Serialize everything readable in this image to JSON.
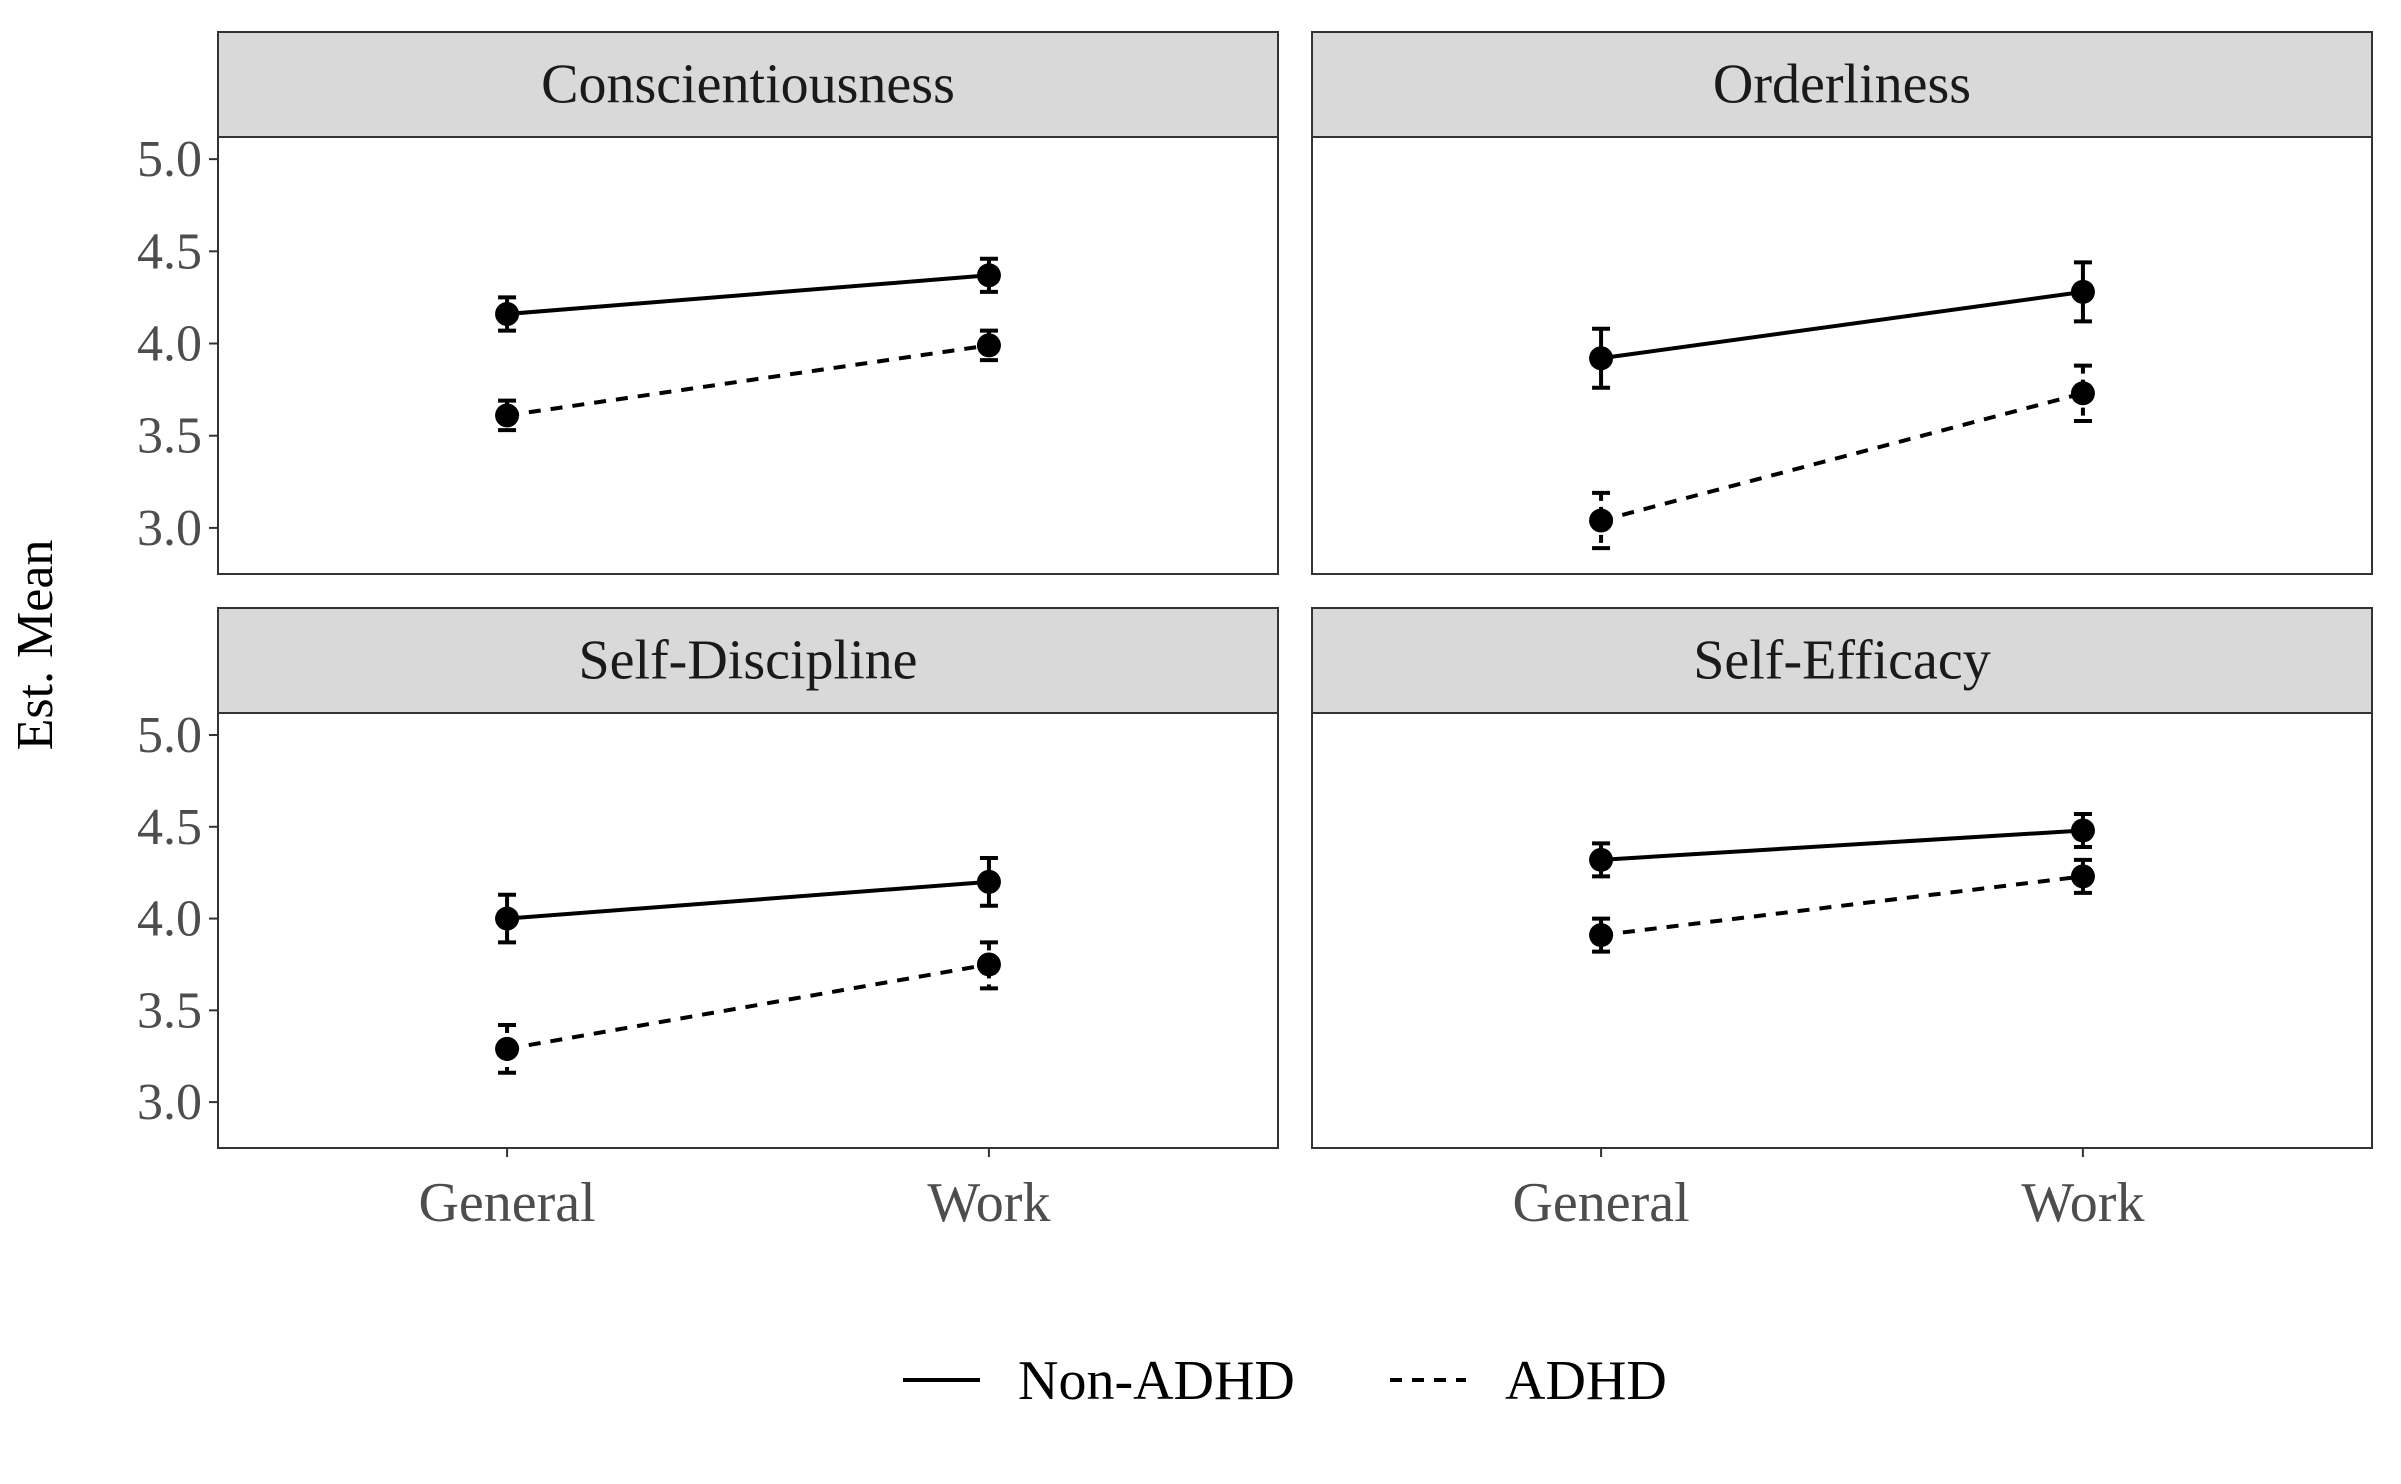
{
  "chart_data": {
    "type": "line",
    "facets": [
      {
        "title": "Conscientiousness",
        "series": [
          {
            "name": "Non-ADHD",
            "values": [
              4.16,
              4.37
            ],
            "ci_low": [
              4.07,
              4.28
            ],
            "ci_high": [
              4.25,
              4.46
            ]
          },
          {
            "name": "ADHD",
            "values": [
              3.61,
              3.99
            ],
            "ci_low": [
              3.53,
              3.91
            ],
            "ci_high": [
              3.69,
              4.07
            ]
          }
        ]
      },
      {
        "title": "Orderliness",
        "series": [
          {
            "name": "Non-ADHD",
            "values": [
              3.92,
              4.28
            ],
            "ci_low": [
              3.76,
              4.12
            ],
            "ci_high": [
              4.08,
              4.44
            ]
          },
          {
            "name": "ADHD",
            "values": [
              3.04,
              3.73
            ],
            "ci_low": [
              2.89,
              3.58
            ],
            "ci_high": [
              3.19,
              3.88
            ]
          }
        ]
      },
      {
        "title": "Self-Discipline",
        "series": [
          {
            "name": "Non-ADHD",
            "values": [
              4.0,
              4.2
            ],
            "ci_low": [
              3.87,
              4.07
            ],
            "ci_high": [
              4.13,
              4.33
            ]
          },
          {
            "name": "ADHD",
            "values": [
              3.29,
              3.75
            ],
            "ci_low": [
              3.16,
              3.62
            ],
            "ci_high": [
              3.42,
              3.87
            ]
          }
        ]
      },
      {
        "title": "Self-Efficacy",
        "series": [
          {
            "name": "Non-ADHD",
            "values": [
              4.32,
              4.48
            ],
            "ci_low": [
              4.23,
              4.39
            ],
            "ci_high": [
              4.41,
              4.57
            ]
          },
          {
            "name": "ADHD",
            "values": [
              3.91,
              4.23
            ],
            "ci_low": [
              3.82,
              4.14
            ],
            "ci_high": [
              4.0,
              4.32
            ]
          }
        ]
      }
    ],
    "categories": [
      "General",
      "Work"
    ],
    "ylabel": "Est. Mean",
    "xlabel": "",
    "yticks": [
      3.0,
      3.5,
      4.0,
      4.5,
      5.0
    ],
    "ytick_labels": [
      "3.0",
      "3.5",
      "4.0",
      "4.5",
      "5.0"
    ],
    "ylim": [
      2.75,
      5.12
    ],
    "legend": {
      "position": "bottom",
      "entries": [
        {
          "label": "Non-ADHD",
          "linetype": "solid"
        },
        {
          "label": "ADHD",
          "linetype": "dashed"
        }
      ]
    },
    "colors": {
      "line": "#000000",
      "strip": "#d9d9d9",
      "panel_border": "#333333",
      "axis_text": "#4d4d4d"
    },
    "grid": false
  }
}
